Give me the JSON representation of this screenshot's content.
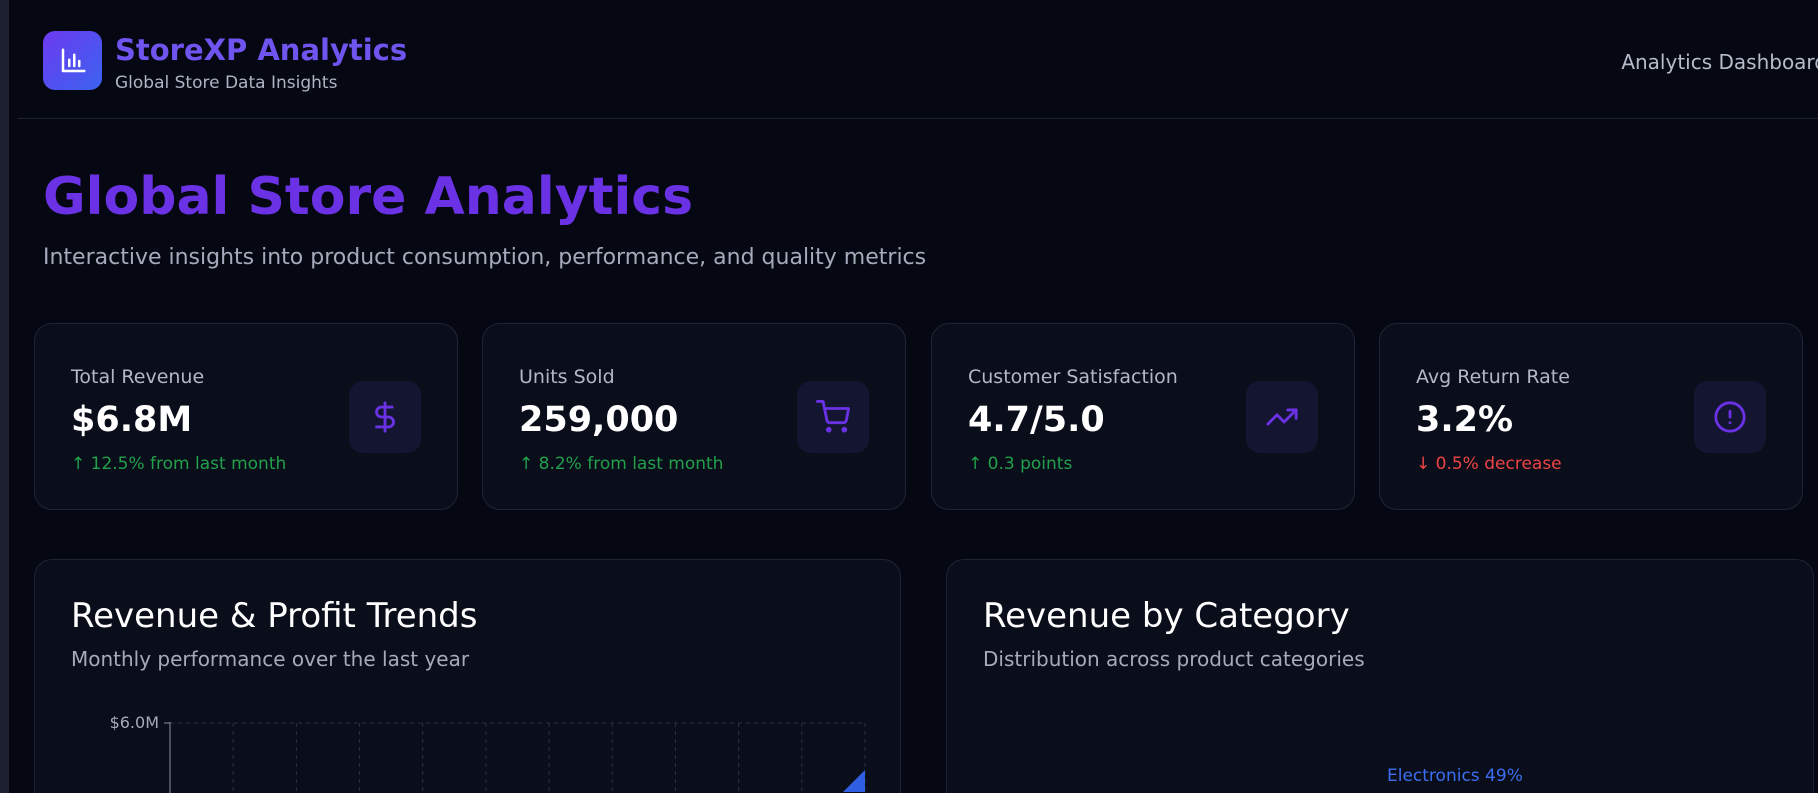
{
  "header": {
    "brand_title": "StoreXP Analytics",
    "brand_subtitle": "Global Store Data Insights",
    "right_label": "Analytics Dashboard",
    "logo_icon": "bar-chart-icon"
  },
  "hero": {
    "title": "Global Store Analytics",
    "subtitle": "Interactive insights into product consumption, performance, and quality metrics"
  },
  "stats": [
    {
      "label": "Total Revenue",
      "value": "$6.8M",
      "change": "↑ 12.5% from last month",
      "trend": "up",
      "icon": "dollar-icon"
    },
    {
      "label": "Units Sold",
      "value": "259,000",
      "change": "↑ 8.2% from last month",
      "trend": "up",
      "icon": "cart-icon"
    },
    {
      "label": "Customer Satisfaction",
      "value": "4.7/5.0",
      "change": "↑ 0.3 points",
      "trend": "up",
      "icon": "trending-up-icon"
    },
    {
      "label": "Avg Return Rate",
      "value": "3.2%",
      "change": "↓ 0.5% decrease",
      "trend": "down",
      "icon": "alert-circle-icon"
    }
  ],
  "colors": {
    "accent": "#6a32e4",
    "up": "#22a04b",
    "down": "#ef4444",
    "series": "#3b6ef0"
  },
  "charts": {
    "revenue": {
      "title": "Revenue & Profit Trends",
      "subtitle": "Monthly performance over the last year"
    },
    "category": {
      "title": "Revenue by Category",
      "subtitle": "Distribution across product categories"
    }
  },
  "chart_data": [
    {
      "type": "area",
      "title": "Revenue & Profit Trends",
      "y_tick_labels": [
        "$6.0M"
      ],
      "ylim_top": 6.0,
      "grid": true
    },
    {
      "type": "pie",
      "title": "Revenue by Category",
      "slices": [
        {
          "label": "Electronics 49%",
          "value": 49
        }
      ]
    }
  ]
}
